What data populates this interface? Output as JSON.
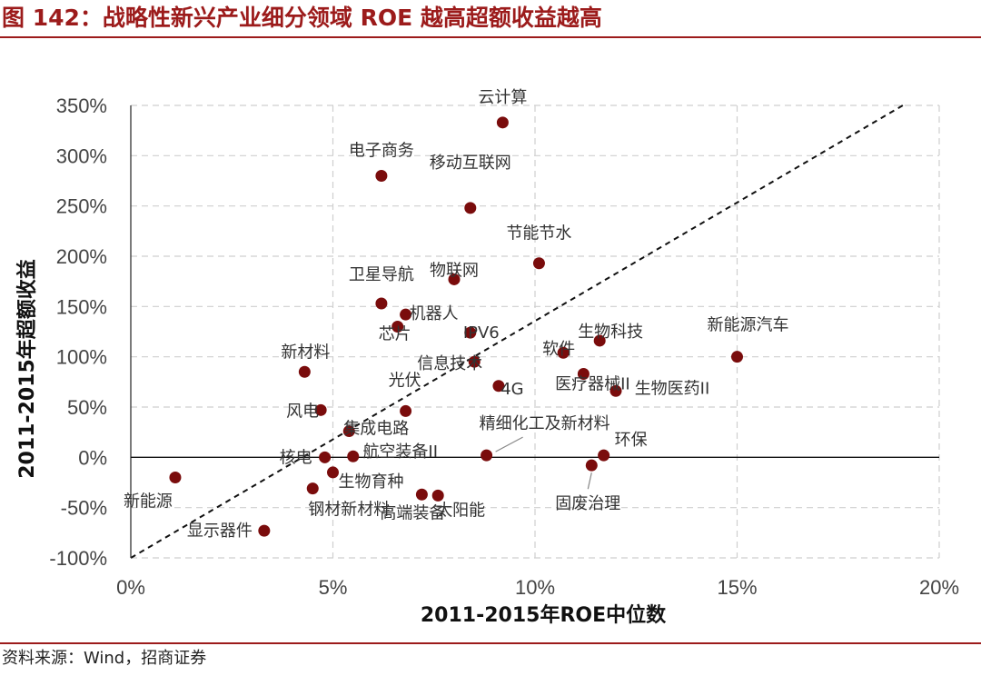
{
  "header": {
    "title": "图 142：战略性新兴产业细分领域 ROE 越高超额收益越高"
  },
  "footer": {
    "source": "资料来源：Wind，招商证券"
  },
  "colors": {
    "brand": "#9c1b1b",
    "point": "#7a0c0c",
    "grid": "#cfcfcf"
  },
  "chart_data": {
    "type": "scatter",
    "title": "",
    "xlabel": "2011-2015年ROE中位数",
    "ylabel": "2011-2015年超额收益",
    "xlim": [
      0,
      20
    ],
    "ylim": [
      -100,
      350
    ],
    "x_ticks": [
      0,
      5,
      10,
      15,
      20
    ],
    "y_ticks": [
      -100,
      -50,
      0,
      50,
      100,
      150,
      200,
      250,
      300,
      350
    ],
    "x_tick_labels": [
      "0%",
      "5%",
      "10%",
      "15%",
      "20%"
    ],
    "y_tick_labels": [
      "-100%",
      "-50%",
      "0%",
      "50%",
      "100%",
      "150%",
      "200%",
      "250%",
      "300%",
      "350%"
    ],
    "grid": true,
    "reference_line": {
      "from": [
        0,
        -100
      ],
      "to": [
        19.1,
        350
      ],
      "style": "dashed"
    },
    "x_unit": "%",
    "y_unit": "%",
    "points": [
      {
        "name": "云计算",
        "x": 9.2,
        "y": 333
      },
      {
        "name": "电子商务",
        "x": 6.2,
        "y": 280
      },
      {
        "name": "移动互联网",
        "x": 8.4,
        "y": 248
      },
      {
        "name": "节能节水",
        "x": 10.1,
        "y": 193
      },
      {
        "name": "卫星导航",
        "x": 6.2,
        "y": 153
      },
      {
        "name": "物联网",
        "x": 8.0,
        "y": 177
      },
      {
        "name": "机器人",
        "x": 6.8,
        "y": 142
      },
      {
        "name": "芯片",
        "x": 6.6,
        "y": 130
      },
      {
        "name": "IPV6",
        "x": 8.4,
        "y": 124
      },
      {
        "name": "软件",
        "x": 10.7,
        "y": 104
      },
      {
        "name": "生物科技",
        "x": 11.6,
        "y": 116
      },
      {
        "name": "新能源汽车",
        "x": 15.0,
        "y": 100
      },
      {
        "name": "新材料",
        "x": 4.3,
        "y": 85
      },
      {
        "name": "信息技术",
        "x": 8.5,
        "y": 95
      },
      {
        "name": "医疗器械II",
        "x": 11.2,
        "y": 83
      },
      {
        "name": "光伏",
        "x": 6.8,
        "y": 46
      },
      {
        "name": "4G",
        "x": 9.1,
        "y": 71
      },
      {
        "name": "生物医药II",
        "x": 12.0,
        "y": 66
      },
      {
        "name": "风电",
        "x": 4.7,
        "y": 47
      },
      {
        "name": "集成电路",
        "x": 5.4,
        "y": 26
      },
      {
        "name": "精细化工及新材料",
        "x": 8.8,
        "y": 2
      },
      {
        "name": "环保",
        "x": 11.7,
        "y": 2
      },
      {
        "name": "核电",
        "x": 4.8,
        "y": 0
      },
      {
        "name": "航空装备II",
        "x": 5.5,
        "y": 1
      },
      {
        "name": "固废治理",
        "x": 11.4,
        "y": -8
      },
      {
        "name": "生物育种",
        "x": 5.0,
        "y": -15
      },
      {
        "name": "新能源",
        "x": 1.1,
        "y": -20
      },
      {
        "name": "高端装备",
        "x": 7.2,
        "y": -37
      },
      {
        "name": "太阳能",
        "x": 7.6,
        "y": -38
      },
      {
        "name": "钢材新材料",
        "x": 4.5,
        "y": -31
      },
      {
        "name": "显示器件",
        "x": 3.3,
        "y": -73
      }
    ]
  }
}
